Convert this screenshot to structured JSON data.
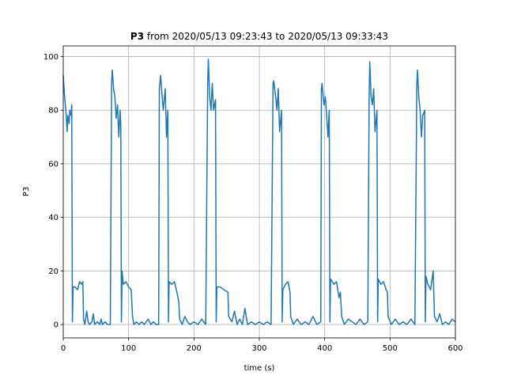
{
  "chart_data": {
    "type": "line",
    "title": {
      "bold": "P3",
      "rest": "from 2020/05/13 09:23:43 to 2020/05/13 09:33:43"
    },
    "xlabel": "time (s)",
    "ylabel": "P3",
    "xlim": [
      0,
      600
    ],
    "ylim": [
      -5,
      104
    ],
    "xticks": [
      0,
      100,
      200,
      300,
      400,
      500,
      600
    ],
    "yticks": [
      0,
      20,
      40,
      60,
      80,
      100
    ],
    "grid": true,
    "series": [
      {
        "name": "P3",
        "color": "#1f77b4",
        "x": [
          0,
          2,
          4,
          6,
          7,
          9,
          10,
          12,
          13,
          14,
          15,
          18,
          22,
          25,
          28,
          30,
          31,
          33,
          36,
          38,
          40,
          44,
          46,
          48,
          52,
          56,
          58,
          60,
          64,
          68,
          72,
          74,
          75,
          77,
          79,
          81,
          83,
          85,
          87,
          88,
          89,
          90,
          92,
          96,
          100,
          104,
          106,
          108,
          112,
          116,
          120,
          124,
          130,
          134,
          138,
          142,
          146,
          147,
          149,
          151,
          153,
          156,
          158,
          160,
          161,
          162,
          166,
          170,
          174,
          177,
          178,
          182,
          186,
          190,
          194,
          200,
          206,
          212,
          218,
          221,
          222,
          224,
          226,
          228,
          230,
          233,
          234,
          235,
          240,
          246,
          252,
          253,
          258,
          262,
          266,
          270,
          274,
          278,
          282,
          288,
          294,
          300,
          306,
          312,
          318,
          321,
          322,
          325,
          327,
          329,
          331,
          334,
          335,
          336,
          340,
          344,
          347,
          348,
          352,
          358,
          364,
          370,
          376,
          382,
          388,
          394,
          395,
          396,
          399,
          401,
          403,
          405,
          407,
          408,
          409,
          414,
          418,
          422,
          424,
          426,
          430,
          436,
          442,
          448,
          454,
          460,
          466,
          468,
          469,
          471,
          473,
          475,
          477,
          480,
          481,
          482,
          486,
          490,
          494,
          496,
          497,
          502,
          508,
          514,
          520,
          526,
          532,
          538,
          541,
          542,
          544,
          546,
          548,
          550,
          553,
          554,
          555,
          558,
          562,
          566,
          568,
          572,
          576,
          580,
          585,
          590,
          595,
          600
        ],
        "values": [
          93,
          85,
          80,
          72,
          78,
          75,
          80,
          78,
          82,
          1,
          14,
          14,
          13,
          16,
          15,
          16,
          2,
          0,
          5,
          1,
          0,
          1,
          4,
          0,
          1,
          0,
          2,
          0,
          1,
          0,
          0,
          90,
          95,
          88,
          85,
          77,
          82,
          70,
          80,
          75,
          1,
          20,
          15,
          16,
          14,
          13,
          3,
          0,
          1,
          0,
          1,
          0,
          2,
          0,
          1,
          0,
          0,
          88,
          93,
          86,
          80,
          88,
          70,
          80,
          1,
          16,
          15,
          16,
          12,
          8,
          2,
          0,
          3,
          1,
          0,
          1,
          0,
          2,
          0,
          90,
          99,
          85,
          80,
          90,
          80,
          84,
          1,
          14,
          14,
          13,
          12,
          3,
          1,
          5,
          0,
          2,
          0,
          6,
          0,
          1,
          0,
          1,
          0,
          1,
          0,
          90,
          91,
          85,
          80,
          88,
          72,
          80,
          1,
          13,
          15,
          16,
          12,
          3,
          0,
          2,
          0,
          1,
          0,
          3,
          0,
          1,
          88,
          90,
          82,
          85,
          78,
          70,
          80,
          1,
          17,
          15,
          16,
          10,
          12,
          3,
          0,
          2,
          1,
          0,
          2,
          0,
          1,
          85,
          98,
          85,
          82,
          88,
          72,
          80,
          1,
          17,
          15,
          16,
          13,
          12,
          3,
          0,
          2,
          0,
          1,
          0,
          2,
          0,
          90,
          95,
          85,
          80,
          70,
          78,
          80,
          1,
          18,
          15,
          13,
          20,
          3,
          1,
          4,
          0,
          1,
          0,
          2,
          1
        ]
      }
    ]
  }
}
